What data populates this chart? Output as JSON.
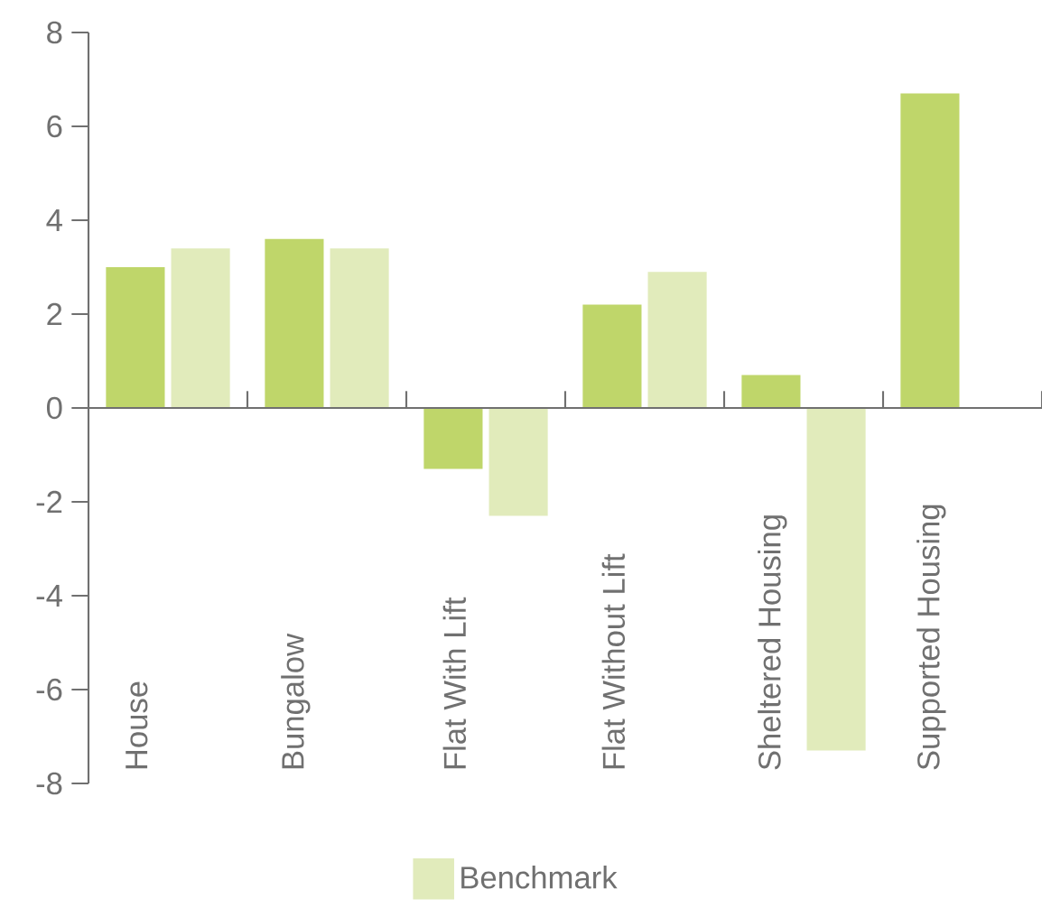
{
  "chart_data": {
    "type": "bar",
    "categories": [
      "House",
      "Bungalow",
      "Flat With Lift",
      "Flat Without Lift",
      "Sheltered Housing",
      "Supported Housing"
    ],
    "series": [
      {
        "color": "#bfd66a",
        "values": [
          3.0,
          3.6,
          -1.3,
          2.2,
          0.7,
          6.7
        ]
      },
      {
        "name": "Benchmark",
        "color": "#e1ebbb",
        "values": [
          3.4,
          3.4,
          -2.3,
          2.9,
          -7.3,
          null
        ]
      }
    ],
    "ylim": [
      -8,
      8
    ],
    "yticks": [
      -8,
      -6,
      -4,
      -2,
      0,
      2,
      4,
      6,
      8
    ],
    "legend": "bottom"
  }
}
